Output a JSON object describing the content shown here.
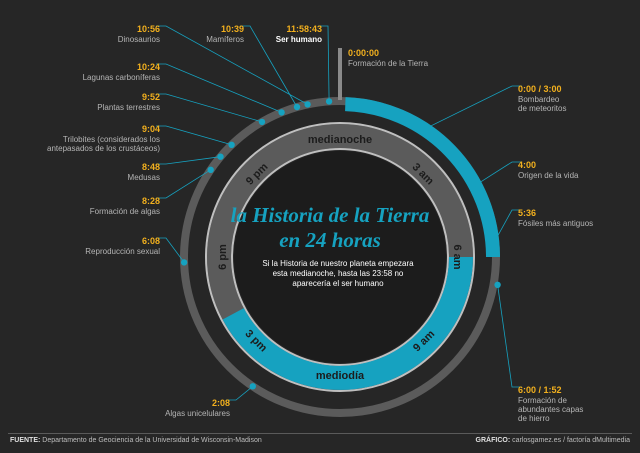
{
  "title": "la Historia de la Tierra en 24 horas",
  "title_lines": [
    "la Historia de la Tierra",
    "en 24 horas"
  ],
  "subtitle_lines": [
    "Si la Historia de nuestro planeta empezara",
    "esta medianoche, hasta las 23:58 no",
    "aparecería el ser humano"
  ],
  "clock_labels": [
    "medianoche",
    "3 am",
    "6 am",
    "9 am",
    "mediodía",
    "3 pm",
    "6 pm",
    "9 pm"
  ],
  "events": [
    {
      "time": "0:00:00",
      "label": [
        "Formación de la Tierra"
      ]
    },
    {
      "time": "0:00 / 3:00",
      "label": [
        "Bombardeo",
        "de meteoritos"
      ]
    },
    {
      "time": "4:00",
      "label": [
        "Origen de la vida"
      ]
    },
    {
      "time": "5:36",
      "label": [
        "Fósiles más antiguos"
      ]
    },
    {
      "time": "6:00 / 1:52",
      "label": [
        "Formación de",
        "abundantes capas",
        "de hierro"
      ]
    },
    {
      "time": "2:08",
      "label": [
        "Algas unicelulares"
      ]
    },
    {
      "time": "6:08",
      "label": [
        "Reproducción sexual"
      ]
    },
    {
      "time": "8:28",
      "label": [
        "Formación de algas"
      ]
    },
    {
      "time": "8:48",
      "label": [
        "Medusas"
      ]
    },
    {
      "time": "9:04",
      "label": [
        "Trilobites (considerados los",
        "antepasados de los crustáceos)"
      ]
    },
    {
      "time": "9:52",
      "label": [
        "Plantas terrestres"
      ]
    },
    {
      "time": "10:24",
      "label": [
        "Lagunas carboníferas"
      ]
    },
    {
      "time": "10:56",
      "label": [
        "Dinosaurios"
      ]
    },
    {
      "time": "10:39",
      "label": [
        "Mamíferos"
      ]
    },
    {
      "time": "11:58:43",
      "label": [
        "Ser humano"
      ]
    }
  ],
  "footer": {
    "source_label": "FUENTE:",
    "source_text": "Departamento de Geociencia de la Universidad de Wisconsin-Madison",
    "graphic_label": "GRÁFICO:",
    "graphic_text": "carlosgamez.es / factoría dMultimedia"
  },
  "colors": {
    "background": "#262626",
    "ring": "#5b5b5b",
    "ring_light": "#bfbfbf",
    "accent": "#16a2c0",
    "time": "#f2b01e",
    "label": "#b5b5b5"
  }
}
